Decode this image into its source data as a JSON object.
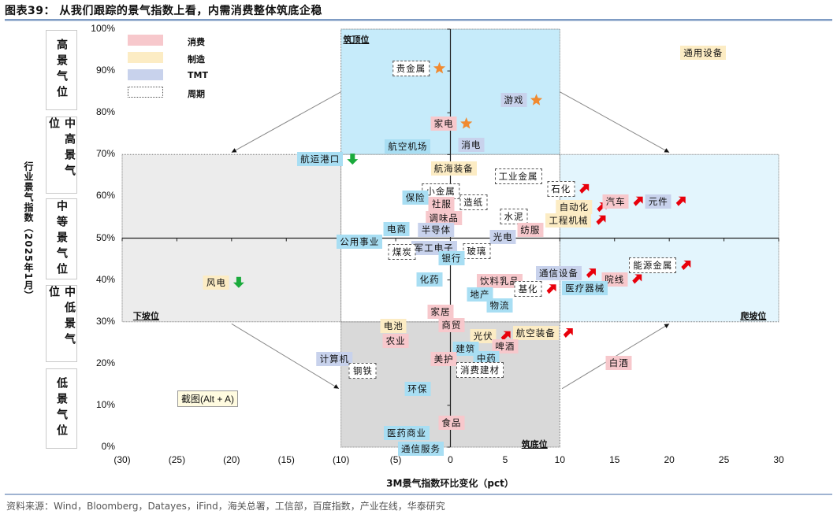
{
  "header": {
    "title": "图表39： 从我们跟踪的景气指数上看，内需消费整体筑底企稳"
  },
  "footer": {
    "source": "资料来源：Wind，Bloomberg，Datayes，iFind，海关总署，工信部，百度指数，产业在线，华泰研究"
  },
  "tooltip": "截图(Alt + A)",
  "bands": [
    {
      "label": "高景气位",
      "color": "#a8def3"
    },
    {
      "label": "中高景气位",
      "color": "#c9edfa"
    },
    {
      "label": "中等景气位",
      "color": "#ffffff"
    },
    {
      "label": "中低景气位",
      "color": "#e2e2e2"
    },
    {
      "label": "低景气位",
      "color": "#c3c3c3"
    }
  ],
  "chart_data": {
    "type": "scatter",
    "title": "从我们跟踪的景气指数上看，内需消费整体筑底企稳",
    "xlabel": "3M景气指数环比变化（pct）",
    "ylabel": "行业景气指数（2025年1月）",
    "xlim": [
      -30,
      30
    ],
    "ylim": [
      0,
      100
    ],
    "x_ticks": [
      {
        "v": -30,
        "t": "(30)"
      },
      {
        "v": -25,
        "t": "(25)"
      },
      {
        "v": -20,
        "t": "(20)"
      },
      {
        "v": -15,
        "t": "(15)"
      },
      {
        "v": -10,
        "t": "(10)"
      },
      {
        "v": -5,
        "t": "(5)"
      },
      {
        "v": 0,
        "t": "0"
      },
      {
        "v": 5,
        "t": "5"
      },
      {
        "v": 10,
        "t": "10"
      },
      {
        "v": 15,
        "t": "15"
      },
      {
        "v": 20,
        "t": "20"
      },
      {
        "v": 25,
        "t": "25"
      },
      {
        "v": 30,
        "t": "30"
      }
    ],
    "y_ticks": [
      {
        "v": 0,
        "t": "0%"
      },
      {
        "v": 10,
        "t": "10%"
      },
      {
        "v": 20,
        "t": "20%"
      },
      {
        "v": 30,
        "t": "30%"
      },
      {
        "v": 40,
        "t": "40%"
      },
      {
        "v": 50,
        "t": "50%"
      },
      {
        "v": 60,
        "t": "60%"
      },
      {
        "v": 70,
        "t": "70%"
      },
      {
        "v": 80,
        "t": "80%"
      },
      {
        "v": 90,
        "t": "90%"
      },
      {
        "v": 100,
        "t": "100%"
      }
    ],
    "legend": {
      "placement": "top-left",
      "items": [
        {
          "key": "consume",
          "label": "消费"
        },
        {
          "key": "manufacture",
          "label": "制造"
        },
        {
          "key": "tmt",
          "label": "TMT"
        },
        {
          "key": "cycle",
          "label": "周期"
        }
      ]
    },
    "zones": [
      {
        "label": "筑顶位",
        "x": -9.8,
        "y": 97.5
      },
      {
        "label": "下坡位",
        "x": -29,
        "y": 31.5
      },
      {
        "label": "爬坡位",
        "x": 26.5,
        "y": 31.5
      },
      {
        "label": "筑底位",
        "x": 6.5,
        "y": 0.8
      }
    ],
    "colors": {
      "star": "#f08a30",
      "up": "#e8000b",
      "down": "#1aaa3c"
    },
    "points": [
      {
        "name": "贵金属",
        "cat": "cycle",
        "x": -3.6,
        "y": 90.6,
        "m": "star"
      },
      {
        "name": "游戏",
        "cat": "tmt",
        "x": 5.8,
        "y": 83.0,
        "m": "star"
      },
      {
        "name": "家电",
        "cat": "consume",
        "x": -0.6,
        "y": 77.4,
        "m": "star"
      },
      {
        "name": "航空机场",
        "cat": "other",
        "x": -3.9,
        "y": 71.9
      },
      {
        "name": "消电",
        "cat": "tmt",
        "x": 1.9,
        "y": 72.3
      },
      {
        "name": "航运港口",
        "cat": "other",
        "x": -11.9,
        "y": 68.9,
        "m": "down"
      },
      {
        "name": "航海装备",
        "cat": "manufacture",
        "x": 0.3,
        "y": 66.7
      },
      {
        "name": "工业金属",
        "cat": "cycle",
        "x": 6.2,
        "y": 64.8
      },
      {
        "name": "石化",
        "cat": "cycle",
        "x": 10.1,
        "y": 61.8,
        "m": "up"
      },
      {
        "name": "小金属",
        "cat": "cycle",
        "x": -0.9,
        "y": 61.2
      },
      {
        "name": "保险",
        "cat": "other",
        "x": -3.2,
        "y": 59.7
      },
      {
        "name": "社服",
        "cat": "consume",
        "x": -0.8,
        "y": 58.2
      },
      {
        "name": "造纸",
        "cat": "cycle",
        "x": 2.1,
        "y": 58.6
      },
      {
        "name": "汽车",
        "cat": "consume",
        "x": 15.1,
        "y": 58.8,
        "m": "up"
      },
      {
        "name": "元件",
        "cat": "tmt",
        "x": 19.0,
        "y": 58.8,
        "m": "up"
      },
      {
        "name": "自动化",
        "cat": "manufacture",
        "x": 11.3,
        "y": 57.4,
        "m": "up"
      },
      {
        "name": "调味品",
        "cat": "consume",
        "x": -0.6,
        "y": 54.8
      },
      {
        "name": "水泥",
        "cat": "cycle",
        "x": 5.8,
        "y": 55.2
      },
      {
        "name": "工程机械",
        "cat": "manufacture",
        "x": 10.8,
        "y": 54.3,
        "m": "up"
      },
      {
        "name": "电商",
        "cat": "other",
        "x": -4.9,
        "y": 52.2
      },
      {
        "name": "半导体",
        "cat": "tmt",
        "x": -1.3,
        "y": 52.0
      },
      {
        "name": "纺服",
        "cat": "consume",
        "x": 7.3,
        "y": 52.0
      },
      {
        "name": "光电",
        "cat": "tmt",
        "x": 4.8,
        "y": 50.3
      },
      {
        "name": "公用事业",
        "cat": "other",
        "x": -8.3,
        "y": 49.2
      },
      {
        "name": "军工电子",
        "cat": "tmt",
        "x": -1.5,
        "y": 47.7
      },
      {
        "name": "煤炭",
        "cat": "cycle",
        "x": -4.4,
        "y": 46.7
      },
      {
        "name": "玻璃",
        "cat": "cycle",
        "x": 2.4,
        "y": 46.9
      },
      {
        "name": "银行",
        "cat": "other",
        "x": 0.1,
        "y": 45.2
      },
      {
        "name": "能源金属",
        "cat": "cycle",
        "x": 18.5,
        "y": 43.5,
        "m": "up"
      },
      {
        "name": "通信设备",
        "cat": "tmt",
        "x": 9.9,
        "y": 41.6,
        "m": "up"
      },
      {
        "name": "化药",
        "cat": "other",
        "x": -1.9,
        "y": 40.1
      },
      {
        "name": "饮料乳品",
        "cat": "consume",
        "x": 4.5,
        "y": 39.7
      },
      {
        "name": "院线",
        "cat": "consume",
        "x": 15.0,
        "y": 40.2,
        "m": "up"
      },
      {
        "name": "风电",
        "cat": "manufacture",
        "x": -21.4,
        "y": 39.4,
        "m": "down"
      },
      {
        "name": "医疗器械",
        "cat": "other",
        "x": 12.3,
        "y": 38.0
      },
      {
        "name": "基化",
        "cat": "cycle",
        "x": 7.1,
        "y": 37.8,
        "m": "up"
      },
      {
        "name": "地产",
        "cat": "other",
        "x": 2.7,
        "y": 36.5
      },
      {
        "name": "物流",
        "cat": "other",
        "x": 4.5,
        "y": 33.9
      },
      {
        "name": "家居",
        "cat": "consume",
        "x": -0.9,
        "y": 32.4
      },
      {
        "name": "电池",
        "cat": "manufacture",
        "x": -5.2,
        "y": 29.0
      },
      {
        "name": "商贸",
        "cat": "consume",
        "x": 0.1,
        "y": 29.2
      },
      {
        "name": "光伏",
        "cat": "manufacture",
        "x": 3.0,
        "y": 26.6,
        "m": "up"
      },
      {
        "name": "航空装备",
        "cat": "manufacture",
        "x": 7.8,
        "y": 27.3,
        "m": "up"
      },
      {
        "name": "农业",
        "cat": "consume",
        "x": -5.0,
        "y": 25.4
      },
      {
        "name": "啤酒",
        "cat": "consume",
        "x": 5.0,
        "y": 24.1
      },
      {
        "name": "建筑",
        "cat": "other",
        "x": 1.4,
        "y": 23.5
      },
      {
        "name": "计算机",
        "cat": "tmt",
        "x": -10.6,
        "y": 21.1
      },
      {
        "name": "美护",
        "cat": "consume",
        "x": -0.6,
        "y": 21.1
      },
      {
        "name": "中药",
        "cat": "other",
        "x": 3.3,
        "y": 21.3
      },
      {
        "name": "白酒",
        "cat": "consume",
        "x": 15.4,
        "y": 20.2
      },
      {
        "name": "钢铁",
        "cat": "cycle",
        "x": -8.0,
        "y": 18.3
      },
      {
        "name": "消费建材",
        "cat": "cycle",
        "x": 2.7,
        "y": 18.5
      },
      {
        "name": "环保",
        "cat": "other",
        "x": -3.0,
        "y": 13.9
      },
      {
        "name": "食品",
        "cat": "consume",
        "x": 0.1,
        "y": 5.8
      },
      {
        "name": "医药商业",
        "cat": "other",
        "x": -4.0,
        "y": 3.4
      },
      {
        "name": "通信服务",
        "cat": "other",
        "x": -2.7,
        "y": -0.3
      },
      {
        "name": "通用设备",
        "cat": "manufacture",
        "x": 23.1,
        "y": 94.3
      }
    ]
  }
}
